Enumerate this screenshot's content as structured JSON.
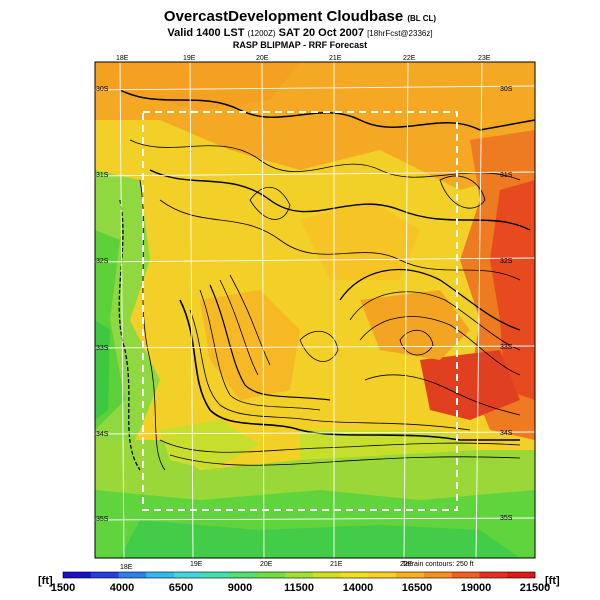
{
  "header": {
    "title": "OvercastDevelopment Cloudbase",
    "title_suffix": "(BL CL)",
    "valid_prefix": "Valid 1400 LST",
    "valid_code": "(1200Z)",
    "valid_date": "SAT 20 Oct 2007",
    "valid_suffix": "[18hrFcst@2336z]",
    "subtitle": "RASP BLIPMAP - RRF Forecast"
  },
  "map": {
    "lon_top": [
      "18E",
      "19E",
      "20E",
      "21E",
      "22E",
      "23E"
    ],
    "lon_bottom": [
      "18E",
      "19E",
      "20E",
      "21E",
      "22E"
    ],
    "lat_right": [
      "30S",
      "31S",
      "32S",
      "33S",
      "34S",
      "35S"
    ],
    "lat_left": [
      "30S",
      "31S",
      "32S",
      "33S",
      "34S",
      "35S"
    ],
    "terrain_note": "Terrain contours: 250 ft"
  },
  "colorbar": {
    "unit_left": "[ft]",
    "unit_right": "[ft]",
    "ticks": [
      "1500",
      "4000",
      "6500",
      "9000",
      "11500",
      "14000",
      "16500",
      "19000",
      "21500"
    ],
    "colors": [
      "#1a10c8",
      "#2040e0",
      "#2a80ee",
      "#30b8f0",
      "#40d8e0",
      "#40e0b0",
      "#50e070",
      "#70e040",
      "#a0e030",
      "#d0e020",
      "#f0e020",
      "#f8d020",
      "#f8b020",
      "#f89020",
      "#f06020",
      "#e83020",
      "#e01818"
    ]
  }
}
